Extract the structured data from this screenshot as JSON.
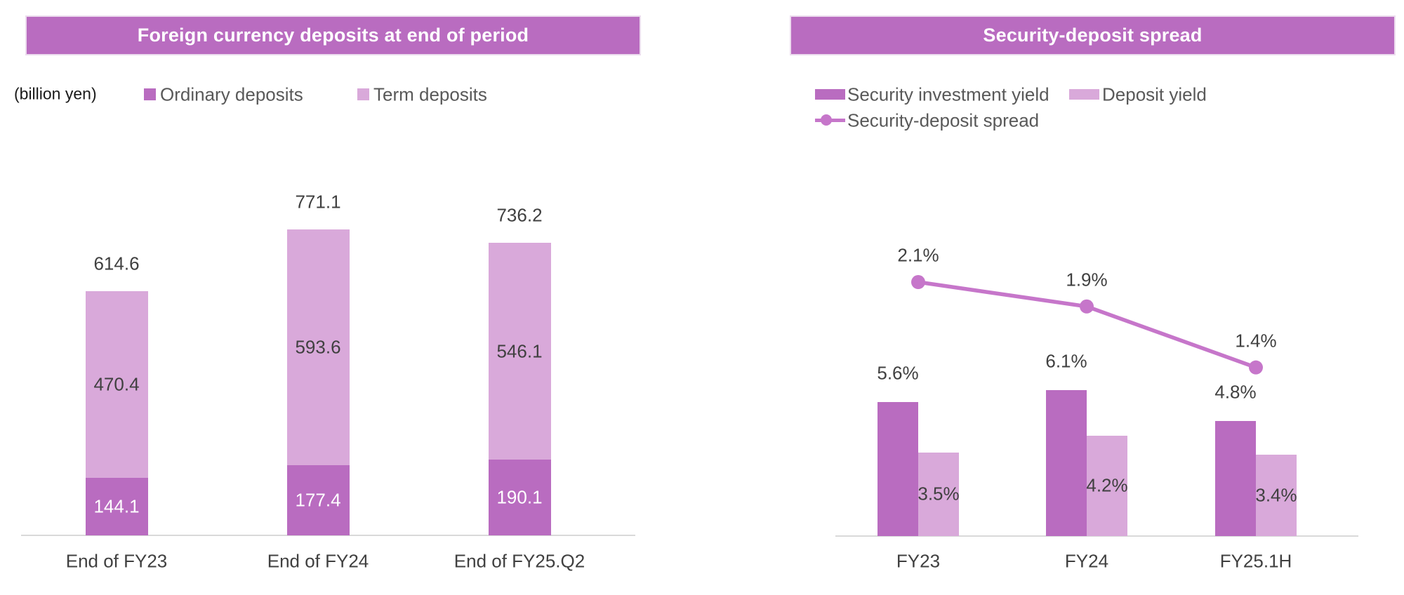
{
  "colors": {
    "purple_dark": "#b96cc0",
    "purple_light": "#d9a9da",
    "line_purple": "#c676ca",
    "banner": "#b96cc0",
    "label_gray": "#404040",
    "legend_gray": "#595959",
    "axis_gray": "#d9d9d9",
    "white_label": "#ffffff"
  },
  "chart_data": [
    {
      "id": "foreign-currency-deposits",
      "type": "stacked-bar",
      "title": "Foreign currency deposits at end of period",
      "unit_label": "(billion yen)",
      "legend_position": "top",
      "grid": false,
      "categories": [
        "End of FY23",
        "End of FY24",
        "End of FY25.Q2"
      ],
      "series": [
        {
          "name": "Ordinary deposits",
          "color": "#b96cc0",
          "values": [
            144.1,
            177.4,
            190.1
          ],
          "labels": [
            "144.1",
            "177.4",
            "190.1"
          ]
        },
        {
          "name": "Term deposits",
          "color": "#d9a9da",
          "values": [
            470.4,
            593.6,
            546.1
          ],
          "labels": [
            "470.4",
            "593.6",
            "546.1"
          ]
        }
      ],
      "totals": {
        "values": [
          614.6,
          771.1,
          736.2
        ],
        "labels": [
          "614.6",
          "771.1",
          "736.2"
        ]
      },
      "ylim": [
        0,
        800
      ]
    },
    {
      "id": "security-deposit-spread",
      "type": "bar+line",
      "title": "Security-deposit spread",
      "legend_position": "top",
      "grid": false,
      "categories": [
        "FY23",
        "FY24",
        "FY25.1H"
      ],
      "series": [
        {
          "name": "Security investment yield",
          "chart": "bar",
          "color": "#b96cc0",
          "values": [
            5.6,
            6.1,
            4.8
          ],
          "labels": [
            "5.6%",
            "6.1%",
            "4.8%"
          ]
        },
        {
          "name": "Deposit yield",
          "chart": "bar",
          "color": "#d9a9da",
          "values": [
            3.5,
            4.2,
            3.4
          ],
          "labels": [
            "3.5%",
            "4.2%",
            "3.4%"
          ]
        },
        {
          "name": "Security-deposit spread",
          "chart": "line",
          "color": "#c676ca",
          "values": [
            2.1,
            1.9,
            1.4
          ],
          "labels": [
            "2.1%",
            "1.9%",
            "1.4%"
          ]
        }
      ],
      "ylim_bars": [
        0,
        7
      ],
      "ylim_line": [
        0,
        2.5
      ]
    }
  ]
}
